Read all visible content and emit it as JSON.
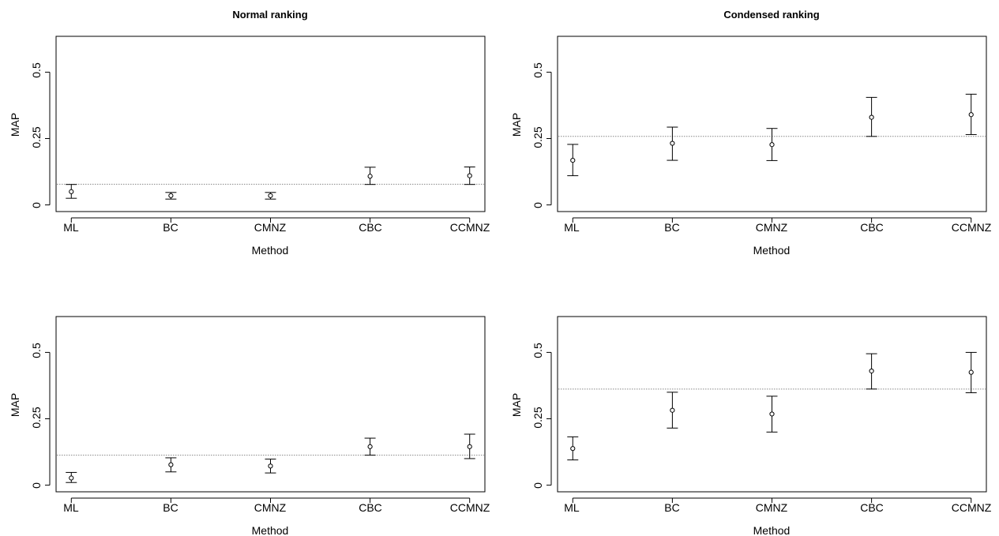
{
  "chart_data": [
    {
      "type": "scatter",
      "title": "Normal ranking",
      "xlabel": "Method",
      "ylabel": "MAP",
      "categories": [
        "ML",
        "BC",
        "CMNZ",
        "CBC",
        "CCMNZ"
      ],
      "yticks": [
        "0",
        "0.25",
        "0.5"
      ],
      "ylim": [
        -0.025,
        0.635
      ],
      "reference_line": 0.078,
      "series": [
        {
          "points": [
            0.05,
            0.035,
            0.035,
            0.108,
            0.11
          ],
          "lower": [
            0.025,
            0.022,
            0.022,
            0.077,
            0.077
          ],
          "upper": [
            0.077,
            0.047,
            0.047,
            0.142,
            0.143
          ]
        }
      ]
    },
    {
      "type": "scatter",
      "title": "Condensed ranking",
      "xlabel": "Method",
      "ylabel": "MAP",
      "categories": [
        "ML",
        "BC",
        "CMNZ",
        "CBC",
        "CCMNZ"
      ],
      "yticks": [
        "0",
        "0.25",
        "0.5"
      ],
      "ylim": [
        -0.025,
        0.635
      ],
      "reference_line": 0.258,
      "series": [
        {
          "points": [
            0.168,
            0.232,
            0.227,
            0.33,
            0.34
          ],
          "lower": [
            0.11,
            0.168,
            0.167,
            0.258,
            0.265
          ],
          "upper": [
            0.228,
            0.293,
            0.288,
            0.405,
            0.417
          ]
        }
      ]
    },
    {
      "type": "scatter",
      "title": "",
      "xlabel": "Method",
      "ylabel": "MAP",
      "categories": [
        "ML",
        "BC",
        "CMNZ",
        "CBC",
        "CCMNZ"
      ],
      "yticks": [
        "0",
        "0.25",
        "0.5"
      ],
      "ylim": [
        -0.025,
        0.635
      ],
      "reference_line": 0.113,
      "series": [
        {
          "points": [
            0.027,
            0.077,
            0.072,
            0.145,
            0.145
          ],
          "lower": [
            0.01,
            0.05,
            0.046,
            0.113,
            0.1
          ],
          "upper": [
            0.048,
            0.103,
            0.098,
            0.177,
            0.192
          ]
        }
      ]
    },
    {
      "type": "scatter",
      "title": "",
      "xlabel": "Method",
      "ylabel": "MAP",
      "categories": [
        "ML",
        "BC",
        "CMNZ",
        "CBC",
        "CCMNZ"
      ],
      "yticks": [
        "0",
        "0.25",
        "0.5"
      ],
      "ylim": [
        -0.025,
        0.635
      ],
      "reference_line": 0.362,
      "series": [
        {
          "points": [
            0.138,
            0.282,
            0.268,
            0.43,
            0.425
          ],
          "lower": [
            0.095,
            0.215,
            0.2,
            0.362,
            0.348
          ],
          "upper": [
            0.182,
            0.35,
            0.335,
            0.495,
            0.5
          ]
        }
      ]
    }
  ]
}
